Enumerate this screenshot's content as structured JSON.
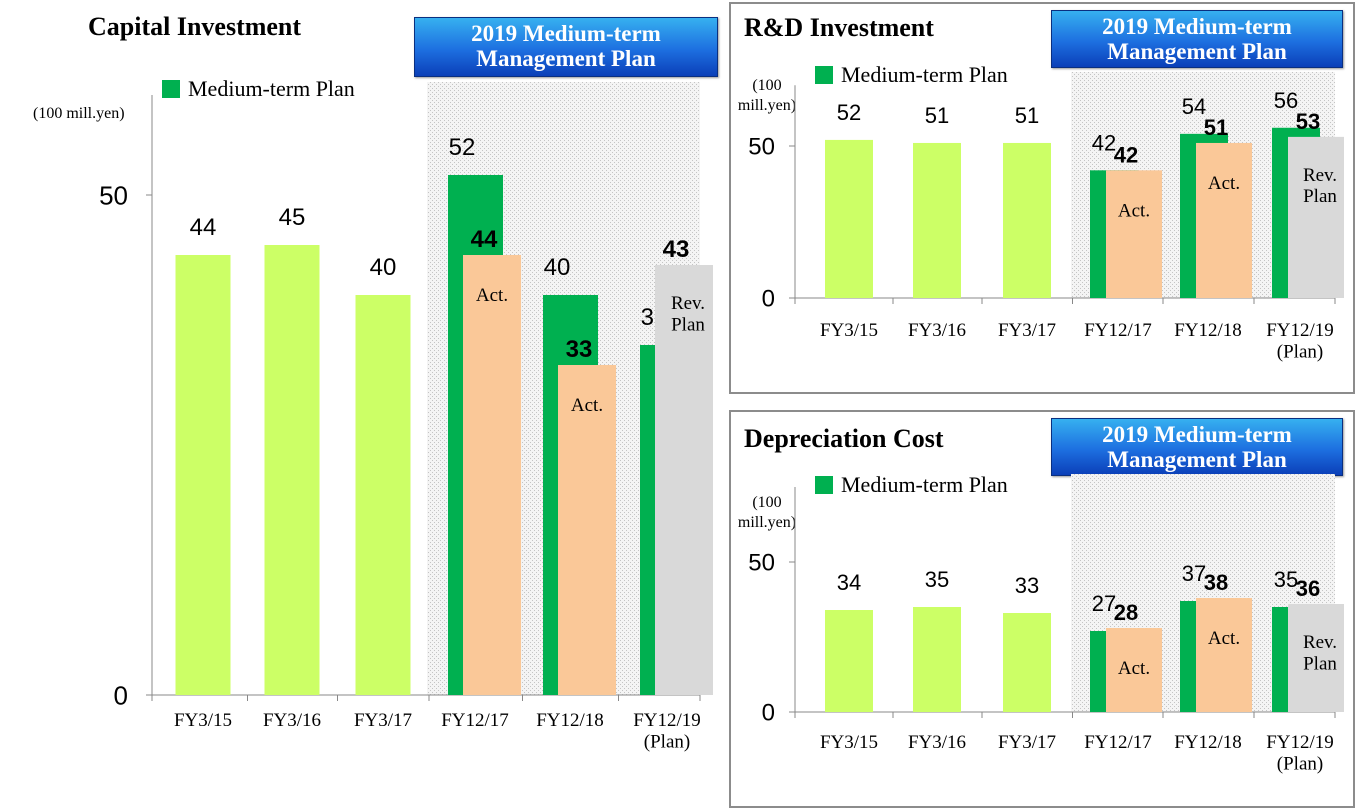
{
  "panels": [
    {
      "id": "capital",
      "title": "Capital Investment",
      "badge": [
        "2019 Medium-term",
        "Management Plan"
      ],
      "legend": "Medium-term Plan",
      "unit": [
        "(100 mill.yen)"
      ]
    },
    {
      "id": "rd",
      "title": "R&D Investment",
      "badge": [
        "2019 Medium-term",
        "Management Plan"
      ],
      "legend": "Medium-term Plan",
      "unit": [
        "(100",
        "mill.yen)"
      ]
    },
    {
      "id": "dep",
      "title": "Depreciation Cost",
      "badge": [
        "2019 Medium-term",
        "Management Plan"
      ],
      "legend": "Medium-term Plan",
      "unit": [
        "(100",
        "mill.yen)"
      ]
    }
  ],
  "colors": {
    "past": "#ccff66",
    "plan": "#00b050",
    "actual": "#fac898",
    "revised": "#d9d9d9",
    "badge": "#1d6fe0"
  },
  "chart_data": [
    {
      "type": "bar",
      "title": "Capital Investment",
      "categories": [
        "FY3/15",
        "FY3/16",
        "FY3/17",
        "FY12/17",
        "FY12/18",
        "FY12/19\n(Plan)"
      ],
      "ylim": [
        0,
        60
      ],
      "yticks": [
        0,
        50
      ],
      "series": [
        {
          "name": "",
          "kind": "past",
          "values": [
            44,
            45,
            40,
            null,
            null,
            null
          ]
        },
        {
          "name": "Medium-term Plan",
          "kind": "plan",
          "values": [
            null,
            null,
            null,
            52,
            40,
            35
          ]
        },
        {
          "name": "",
          "kind": "actual",
          "values": [
            null,
            null,
            null,
            44,
            33,
            43
          ]
        }
      ],
      "overlay_labels": [
        "",
        "",
        "",
        "Act.",
        "Act.",
        "Rev.\nPlan"
      ]
    },
    {
      "type": "bar",
      "title": "R&D Investment",
      "categories": [
        "FY3/15",
        "FY3/16",
        "FY3/17",
        "FY12/17",
        "FY12/18",
        "FY12/19\n(Plan)"
      ],
      "ylim": [
        0,
        70
      ],
      "yticks": [
        0,
        50
      ],
      "series": [
        {
          "name": "",
          "kind": "past",
          "values": [
            52,
            51,
            51,
            null,
            null,
            null
          ]
        },
        {
          "name": "Medium-term Plan",
          "kind": "plan",
          "values": [
            null,
            null,
            null,
            42,
            54,
            56
          ]
        },
        {
          "name": "",
          "kind": "actual",
          "values": [
            null,
            null,
            null,
            42,
            51,
            53
          ]
        }
      ],
      "overlay_labels": [
        "",
        "",
        "",
        "Act.",
        "Act.",
        "Rev.\nPlan"
      ]
    },
    {
      "type": "bar",
      "title": "Depreciation Cost",
      "categories": [
        "FY3/15",
        "FY3/16",
        "FY3/17",
        "FY12/17",
        "FY12/18",
        "FY12/19\n(Plan)"
      ],
      "ylim": [
        0,
        75
      ],
      "yticks": [
        0,
        50
      ],
      "series": [
        {
          "name": "",
          "kind": "past",
          "values": [
            34,
            35,
            33,
            null,
            null,
            null
          ]
        },
        {
          "name": "Medium-term Plan",
          "kind": "plan",
          "values": [
            null,
            null,
            null,
            27,
            37,
            35
          ]
        },
        {
          "name": "",
          "kind": "actual",
          "values": [
            null,
            null,
            null,
            28,
            38,
            36
          ]
        }
      ],
      "overlay_labels": [
        "",
        "",
        "",
        "Act.",
        "Act.",
        "Rev.\nPlan"
      ]
    }
  ]
}
